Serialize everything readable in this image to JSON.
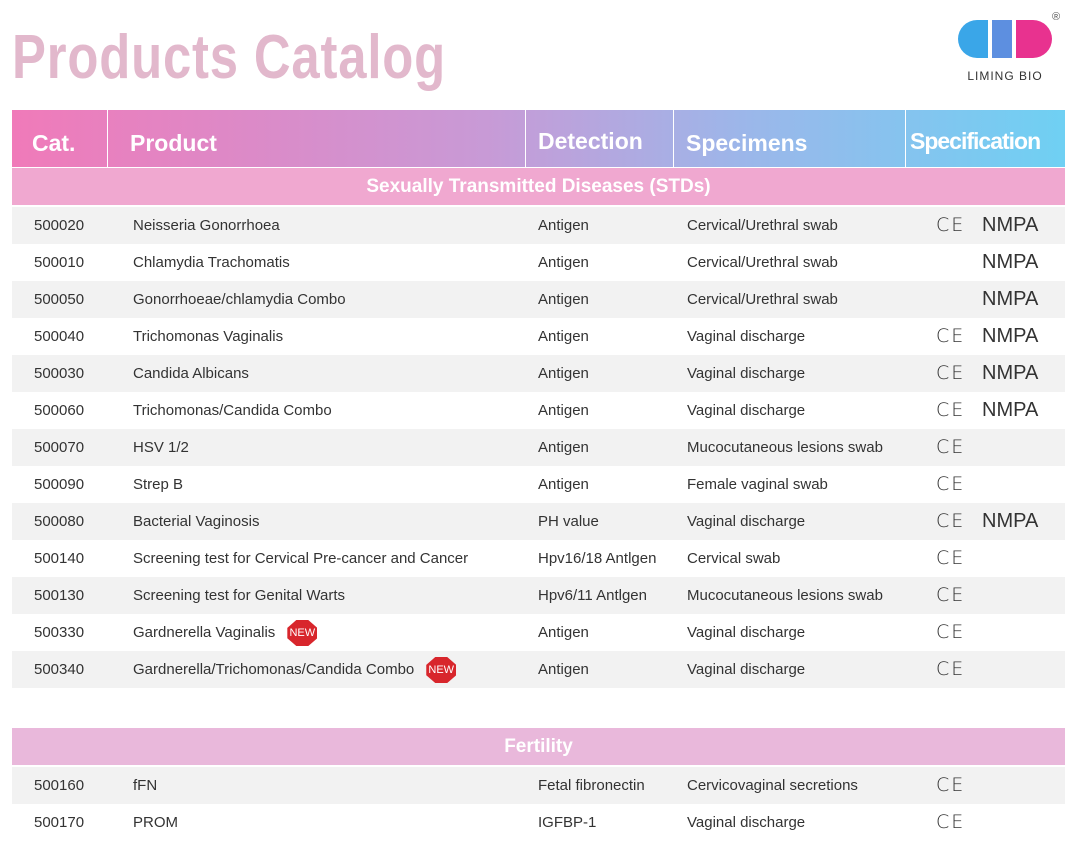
{
  "header": {
    "title": "Products Catalog",
    "logo": {
      "name": "LIMING BIO",
      "mark": "®"
    }
  },
  "table": {
    "columns": [
      "Cat.",
      "Product",
      "Detection",
      "Specimens",
      "Specification"
    ],
    "sections": [
      {
        "title": "Sexually Transmitted Diseases (STDs)",
        "rows": [
          {
            "cat": "500020",
            "product": "Neisseria Gonorrhoea",
            "detection": "Antigen",
            "specimens": "Cervical/Urethral swab",
            "spec": {
              "ce": "CE",
              "nmpa": "NMPA"
            }
          },
          {
            "cat": "500010",
            "product": "Chlamydia Trachomatis",
            "detection": "Antigen",
            "specimens": "Cervical/Urethral swab",
            "spec": {
              "nmpa": "NMPA"
            }
          },
          {
            "cat": "500050",
            "product": "Gonorrhoeae/chlamydia Combo",
            "detection": "Antigen",
            "specimens": "Cervical/Urethral swab",
            "spec": {
              "nmpa": "NMPA"
            }
          },
          {
            "cat": "500040",
            "product": "Trichomonas Vaginalis",
            "detection": "Antigen",
            "specimens": "Vaginal discharge",
            "spec": {
              "ce": "CE",
              "nmpa": "NMPA"
            }
          },
          {
            "cat": "500030",
            "product": "Candida Albicans",
            "detection": "Antigen",
            "specimens": "Vaginal discharge",
            "spec": {
              "ce": "CE",
              "nmpa": "NMPA"
            }
          },
          {
            "cat": "500060",
            "product": "Trichomonas/Candida Combo",
            "detection": "Antigen",
            "specimens": "Vaginal discharge",
            "spec": {
              "ce": "CE",
              "nmpa": "NMPA"
            }
          },
          {
            "cat": "500070",
            "product": "HSV 1/2",
            "detection": "Antigen",
            "specimens": "Mucocutaneous lesions swab",
            "spec": {
              "ce": "CE"
            }
          },
          {
            "cat": "500090",
            "product": "Strep B",
            "detection": "Antigen",
            "specimens": "Female vaginal swab",
            "spec": {
              "ce": "CE"
            }
          },
          {
            "cat": "500080",
            "product": "Bacterial Vaginosis",
            "detection": "PH value",
            "specimens": "Vaginal discharge",
            "spec": {
              "ce": "CE",
              "nmpa": "NMPA"
            }
          },
          {
            "cat": "500140",
            "product": "Screening test for Cervical Pre-cancer and Cancer",
            "detection": "Hpv16/18 Antlgen",
            "specimens": "Cervical swab",
            "spec": {
              "ce": "CE"
            }
          },
          {
            "cat": "500130",
            "product": "Screening test for Genital Warts",
            "detection": "Hpv6/11 Antlgen",
            "specimens": "Mucocutaneous lesions swab",
            "spec": {
              "ce": "CE"
            }
          },
          {
            "cat": "500330",
            "product": "Gardnerella Vaginalis",
            "badge": "NEW",
            "detection": "Antigen",
            "specimens": "Vaginal discharge",
            "spec": {
              "ce": "CE"
            }
          },
          {
            "cat": "500340",
            "product": "Gardnerella/Trichomonas/Candida Combo",
            "badge": "NEW",
            "detection": "Antigen",
            "specimens": "Vaginal discharge",
            "spec": {
              "ce": "CE"
            }
          }
        ]
      },
      {
        "title": "Fertility",
        "rows": [
          {
            "cat": "500160",
            "product": "fFN",
            "detection": "Fetal fibronectin",
            "specimens": "Cervicovaginal secretions",
            "spec": {
              "ce": "CE"
            }
          },
          {
            "cat": "500170",
            "product": "PROM",
            "detection": "IGFBP-1",
            "specimens": "Vaginal discharge",
            "spec": {
              "ce": "CE"
            }
          }
        ]
      }
    ]
  }
}
